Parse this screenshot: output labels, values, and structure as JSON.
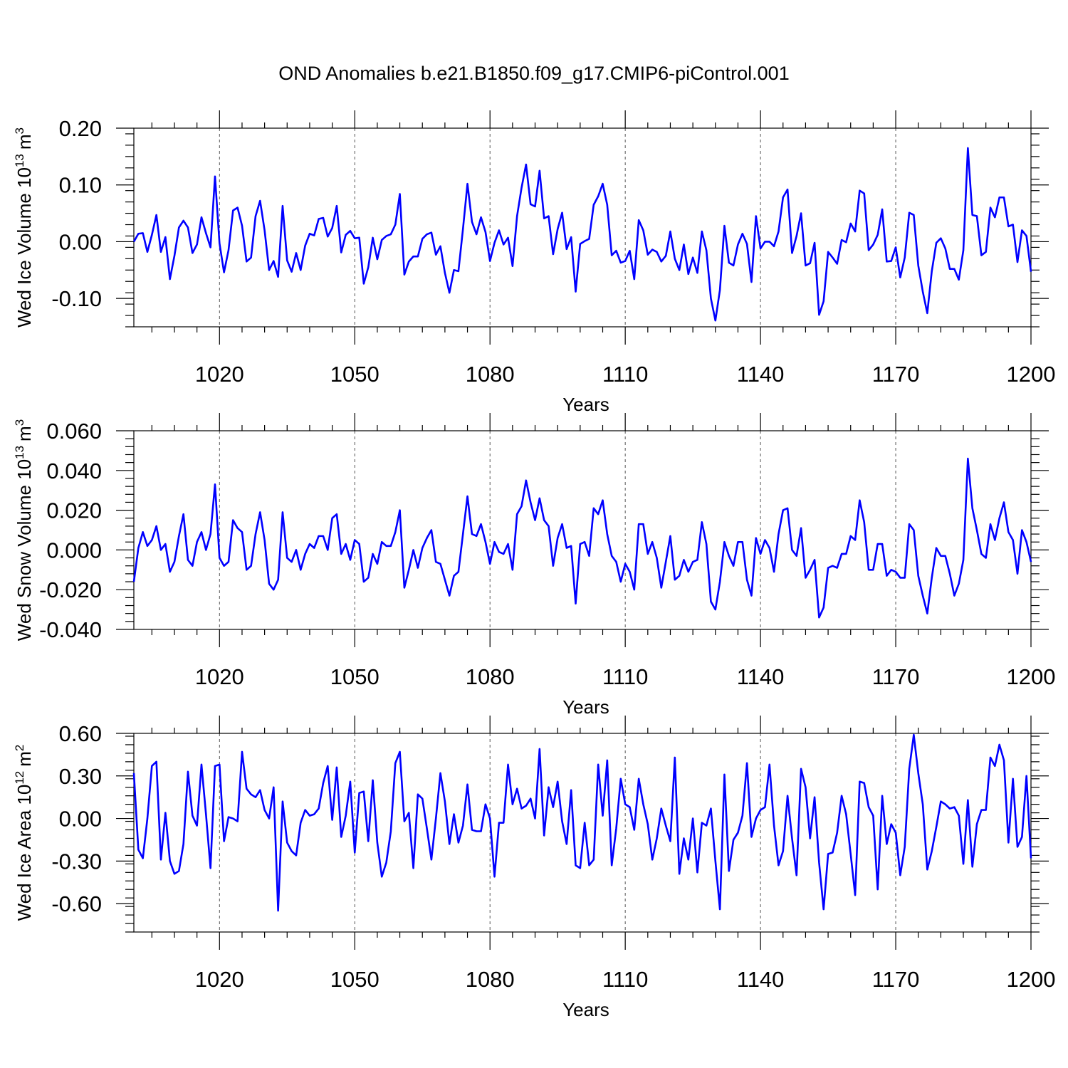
{
  "figure": {
    "title": "OND Anomalies b.e21.B1850.f09_g17.CMIP6-piControl.001",
    "line_color": "#0000ff"
  },
  "chart_data": [
    {
      "type": "line",
      "title": "",
      "xlabel": "Years",
      "ylabel": "Wed Ice Volume 10",
      "ylabel_exponent": "13",
      "ylabel_unit": "m",
      "ylabel_unit_exponent": "3",
      "xlim": [
        1001,
        1200
      ],
      "ylim": [
        -0.15,
        0.2
      ],
      "xticks": [
        1020,
        1050,
        1080,
        1110,
        1140,
        1170,
        1200
      ],
      "xtick_labels": [
        "1020",
        "1050",
        "1080",
        "1110",
        "1140",
        "1170",
        "1200"
      ],
      "yticks": [
        -0.1,
        0.0,
        0.1,
        0.2
      ],
      "ytick_labels": [
        "-0.10",
        "0.00",
        "0.10",
        "0.20"
      ],
      "grid": "dashed vertical lines at major x ticks",
      "x_start": 1001,
      "series": [
        {
          "name": "Wed Ice Volume",
          "color": "#0000ff",
          "values": [
            0.0,
            0.014,
            0.015,
            -0.018,
            0.012,
            0.047,
            -0.018,
            0.008,
            -0.066,
            -0.025,
            0.025,
            0.037,
            0.025,
            -0.02,
            -0.005,
            0.043,
            0.015,
            -0.01,
            0.115,
            -0.003,
            -0.054,
            -0.015,
            0.055,
            0.06,
            0.028,
            -0.035,
            -0.028,
            0.045,
            0.072,
            0.02,
            -0.05,
            -0.034,
            -0.062,
            0.063,
            -0.033,
            -0.053,
            -0.02,
            -0.05,
            -0.007,
            0.014,
            0.011,
            0.04,
            0.042,
            0.009,
            0.024,
            0.063,
            -0.019,
            0.012,
            0.019,
            0.006,
            0.007,
            -0.074,
            -0.045,
            0.007,
            -0.031,
            0.003,
            0.01,
            0.013,
            0.03,
            0.084,
            -0.058,
            -0.035,
            -0.026,
            -0.026,
            0.005,
            0.013,
            0.016,
            -0.023,
            -0.008,
            -0.055,
            -0.09,
            -0.05,
            -0.052,
            0.022,
            0.102,
            0.035,
            0.013,
            0.043,
            0.017,
            -0.034,
            -0.002,
            0.02,
            -0.005,
            0.007,
            -0.043,
            0.045,
            0.095,
            0.136,
            0.066,
            0.062,
            0.125,
            0.041,
            0.045,
            -0.022,
            0.022,
            0.051,
            -0.013,
            0.008,
            -0.088,
            -0.004,
            0.001,
            0.005,
            0.065,
            0.08,
            0.102,
            0.065,
            -0.024,
            -0.016,
            -0.037,
            -0.034,
            -0.016,
            -0.066,
            0.038,
            0.02,
            -0.023,
            -0.014,
            -0.018,
            -0.035,
            -0.025,
            0.018,
            -0.03,
            -0.05,
            -0.005,
            -0.057,
            -0.028,
            -0.055,
            0.018,
            -0.015,
            -0.1,
            -0.139,
            -0.085,
            0.028,
            -0.037,
            -0.042,
            -0.005,
            0.014,
            -0.004,
            -0.071,
            0.045,
            -0.012,
            0.0,
            0.0,
            -0.008,
            0.018,
            0.078,
            0.092,
            -0.02,
            0.01,
            0.05,
            -0.042,
            -0.038,
            -0.002,
            -0.129,
            -0.105,
            -0.018,
            -0.028,
            -0.039,
            0.003,
            -0.001,
            0.032,
            0.018,
            0.09,
            0.085,
            -0.015,
            -0.005,
            0.012,
            0.057,
            -0.035,
            -0.034,
            -0.01,
            -0.063,
            -0.028,
            0.051,
            0.047,
            -0.042,
            -0.088,
            -0.126,
            -0.052,
            -0.002,
            0.006,
            -0.012,
            -0.048,
            -0.048,
            -0.067,
            -0.015,
            0.165,
            0.047,
            0.045,
            -0.024,
            -0.018,
            0.06,
            0.043,
            0.078,
            0.078,
            0.027,
            0.03,
            -0.036,
            0.02,
            0.01,
            -0.053
          ]
        }
      ]
    },
    {
      "type": "line",
      "title": "",
      "xlabel": "Years",
      "ylabel": "Wed Snow Volume 10",
      "ylabel_exponent": "13",
      "ylabel_unit": "m",
      "ylabel_unit_exponent": "3",
      "xlim": [
        1001,
        1200
      ],
      "ylim": [
        -0.04,
        0.06
      ],
      "xticks": [
        1020,
        1050,
        1080,
        1110,
        1140,
        1170,
        1200
      ],
      "xtick_labels": [
        "1020",
        "1050",
        "1080",
        "1110",
        "1140",
        "1170",
        "1200"
      ],
      "yticks": [
        -0.04,
        -0.02,
        0.0,
        0.02,
        0.04,
        0.06
      ],
      "ytick_labels": [
        "-0.040",
        "-0.020",
        "0.000",
        "0.020",
        "0.040",
        "0.060"
      ],
      "grid": "dashed vertical lines at major x ticks",
      "x_start": 1001,
      "series": [
        {
          "name": "Wed Snow Volume",
          "color": "#0000ff",
          "values": [
            -0.016,
            0.001,
            0.009,
            0.002,
            0.005,
            0.012,
            0.0,
            0.003,
            -0.011,
            -0.006,
            0.007,
            0.018,
            -0.005,
            -0.008,
            0.004,
            0.009,
            0.0,
            0.008,
            0.033,
            -0.004,
            -0.008,
            -0.006,
            0.015,
            0.011,
            0.009,
            -0.01,
            -0.008,
            0.008,
            0.019,
            0.005,
            -0.017,
            -0.02,
            -0.015,
            0.019,
            -0.004,
            -0.006,
            0.0,
            -0.01,
            -0.002,
            0.003,
            0.001,
            0.007,
            0.007,
            0.0,
            0.016,
            0.018,
            -0.002,
            0.003,
            -0.005,
            0.005,
            0.003,
            -0.016,
            -0.014,
            -0.002,
            -0.007,
            0.004,
            0.002,
            0.002,
            0.009,
            0.02,
            -0.019,
            -0.01,
            0.0,
            -0.009,
            0.001,
            0.006,
            0.01,
            -0.006,
            -0.007,
            -0.015,
            -0.023,
            -0.013,
            -0.011,
            0.008,
            0.027,
            0.008,
            0.007,
            0.013,
            0.004,
            -0.007,
            0.004,
            -0.001,
            -0.002,
            0.003,
            -0.01,
            0.018,
            0.022,
            0.035,
            0.024,
            0.015,
            0.026,
            0.015,
            0.012,
            -0.008,
            0.006,
            0.013,
            0.001,
            0.002,
            -0.027,
            0.003,
            0.004,
            -0.003,
            0.021,
            0.018,
            0.025,
            0.008,
            -0.003,
            -0.006,
            -0.016,
            -0.007,
            -0.011,
            -0.02,
            0.013,
            0.013,
            -0.002,
            0.004,
            -0.004,
            -0.019,
            -0.006,
            0.007,
            -0.015,
            -0.013,
            -0.005,
            -0.011,
            -0.006,
            -0.005,
            0.014,
            0.003,
            -0.026,
            -0.03,
            -0.016,
            0.004,
            -0.003,
            -0.008,
            0.004,
            0.004,
            -0.015,
            -0.023,
            0.006,
            -0.002,
            0.005,
            0.001,
            -0.011,
            0.008,
            0.02,
            0.021,
            0.0,
            -0.003,
            0.011,
            -0.014,
            -0.01,
            -0.005,
            -0.034,
            -0.029,
            -0.009,
            -0.008,
            -0.009,
            -0.002,
            -0.002,
            0.007,
            0.005,
            0.025,
            0.014,
            -0.01,
            -0.01,
            0.003,
            0.003,
            -0.013,
            -0.01,
            -0.011,
            -0.014,
            -0.014,
            0.013,
            0.01,
            -0.013,
            -0.023,
            -0.032,
            -0.014,
            0.001,
            -0.003,
            -0.003,
            -0.012,
            -0.023,
            -0.017,
            -0.005,
            0.046,
            0.021,
            0.01,
            -0.002,
            -0.004,
            0.013,
            0.005,
            0.016,
            0.024,
            0.009,
            0.005,
            -0.012,
            0.01,
            0.004,
            -0.006
          ]
        }
      ]
    },
    {
      "type": "line",
      "title": "",
      "xlabel": "Years",
      "ylabel": "Wed Ice Area 10",
      "ylabel_exponent": "12",
      "ylabel_unit": "m",
      "ylabel_unit_exponent": "2",
      "xlim": [
        1001,
        1200
      ],
      "ylim": [
        -0.8,
        0.6
      ],
      "xticks": [
        1020,
        1050,
        1080,
        1110,
        1140,
        1170,
        1200
      ],
      "xtick_labels": [
        "1020",
        "1050",
        "1080",
        "1110",
        "1140",
        "1170",
        "1200"
      ],
      "yticks": [
        -0.6,
        -0.3,
        0.0,
        0.3,
        0.6
      ],
      "ytick_labels": [
        "-0.60",
        "-0.30",
        "0.00",
        "0.30",
        "0.60"
      ],
      "grid": "dashed vertical lines at major x ticks",
      "x_start": 1001,
      "series": [
        {
          "name": "Wed Ice Area",
          "color": "#0000ff",
          "values": [
            0.32,
            -0.22,
            -0.28,
            0.0,
            0.37,
            0.4,
            -0.29,
            0.04,
            -0.3,
            -0.39,
            -0.37,
            -0.18,
            0.33,
            0.02,
            -0.05,
            0.38,
            0.03,
            -0.35,
            0.37,
            0.38,
            -0.16,
            0.01,
            0.0,
            -0.02,
            0.47,
            0.21,
            0.17,
            0.15,
            0.2,
            0.06,
            0.0,
            0.22,
            -0.65,
            0.12,
            -0.17,
            -0.23,
            -0.26,
            -0.03,
            0.06,
            0.02,
            0.03,
            0.07,
            0.25,
            0.37,
            -0.01,
            0.36,
            -0.13,
            0.02,
            0.26,
            -0.24,
            0.18,
            0.19,
            -0.16,
            0.27,
            -0.17,
            -0.41,
            -0.31,
            -0.09,
            0.39,
            0.47,
            -0.02,
            0.04,
            -0.35,
            0.17,
            0.14,
            -0.07,
            -0.29,
            0.0,
            0.32,
            0.12,
            -0.18,
            0.03,
            -0.17,
            -0.05,
            0.24,
            -0.08,
            -0.09,
            -0.09,
            0.1,
            0.0,
            -0.41,
            -0.03,
            -0.03,
            0.38,
            0.1,
            0.21,
            0.07,
            0.09,
            0.14,
            0.0,
            0.49,
            -0.12,
            0.22,
            0.08,
            0.26,
            -0.02,
            -0.18,
            0.2,
            -0.33,
            -0.35,
            -0.03,
            -0.33,
            -0.29,
            0.38,
            0.02,
            0.41,
            -0.33,
            -0.07,
            0.28,
            0.1,
            0.08,
            -0.08,
            0.28,
            0.1,
            -0.04,
            -0.29,
            -0.14,
            0.07,
            -0.05,
            -0.16,
            0.43,
            -0.39,
            -0.14,
            -0.29,
            0.0,
            -0.38,
            -0.03,
            -0.05,
            0.07,
            -0.3,
            -0.64,
            0.31,
            -0.37,
            -0.15,
            -0.1,
            0.02,
            0.39,
            -0.13,
            0.0,
            0.06,
            0.08,
            0.38,
            -0.05,
            -0.33,
            -0.23,
            0.16,
            -0.14,
            -0.4,
            0.35,
            0.22,
            -0.14,
            0.15,
            -0.31,
            -0.64,
            -0.25,
            -0.24,
            -0.1,
            0.16,
            0.03,
            -0.25,
            -0.54,
            0.26,
            0.25,
            0.08,
            0.02,
            -0.5,
            0.16,
            -0.18,
            -0.04,
            -0.1,
            -0.4,
            -0.2,
            0.35,
            0.59,
            0.32,
            0.1,
            -0.36,
            -0.23,
            -0.06,
            0.12,
            0.1,
            0.07,
            0.08,
            0.02,
            -0.32,
            0.13,
            -0.34,
            -0.04,
            0.06,
            0.06,
            0.43,
            0.37,
            0.52,
            0.41,
            -0.17,
            0.28,
            -0.2,
            -0.13,
            0.3,
            -0.28
          ]
        }
      ]
    }
  ]
}
